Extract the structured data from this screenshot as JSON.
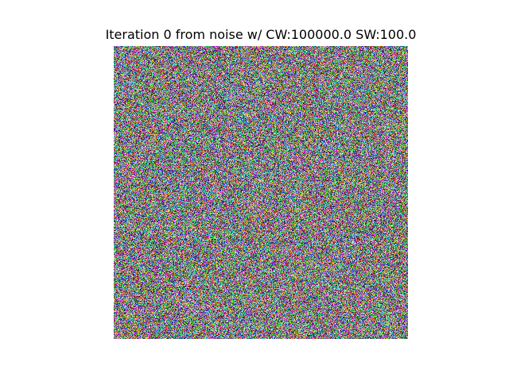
{
  "figure": {
    "title": "Iteration 0 from noise w/ CW:100000.0 SW:100.0"
  }
}
